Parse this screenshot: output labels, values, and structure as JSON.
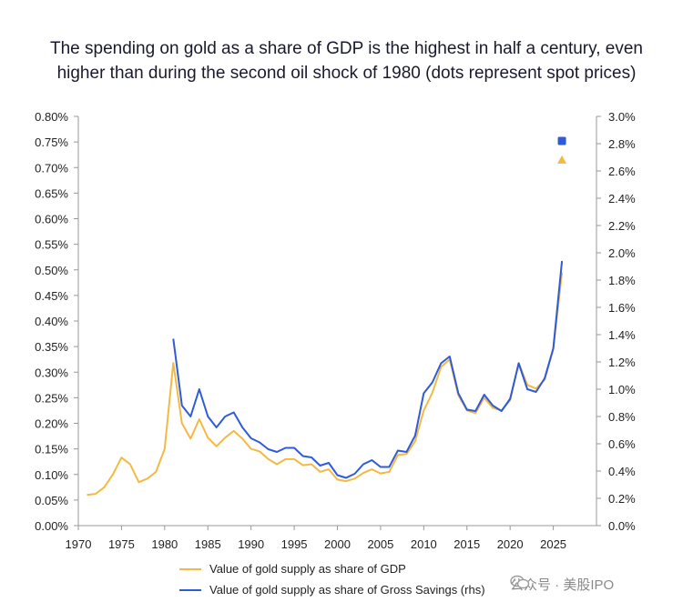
{
  "title_lines": [
    "The spending on gold as a share of GDP is the highest in half a century, even",
    "higher than during the second oil shock of 1980 (dots represent spot prices)"
  ],
  "watermark": "公众号 · 美股IPO",
  "colors": {
    "gdp": "#F4B942",
    "savings": "#2E5BD8",
    "axis": "#999999",
    "text": "#222222"
  },
  "chart_data": {
    "type": "line",
    "title": "The spending on gold as a share of GDP is the highest in half a century, even higher than during the second oil shock of 1980 (dots represent spot prices)",
    "x_ticks": [
      1970,
      1975,
      1980,
      1985,
      1990,
      1995,
      2000,
      2005,
      2010,
      2015,
      2020,
      2025
    ],
    "xlim": [
      1970,
      2030
    ],
    "y_left": {
      "ylim": [
        0,
        0.8
      ],
      "ticks": [
        "0.00%",
        "0.05%",
        "0.10%",
        "0.15%",
        "0.20%",
        "0.25%",
        "0.30%",
        "0.35%",
        "0.40%",
        "0.45%",
        "0.50%",
        "0.55%",
        "0.60%",
        "0.65%",
        "0.70%",
        "0.75%",
        "0.80%"
      ]
    },
    "y_right": {
      "ylim": [
        0,
        3.0
      ],
      "ticks": [
        "0.0%",
        "0.2%",
        "0.4%",
        "0.6%",
        "0.8%",
        "1.0%",
        "1.2%",
        "1.4%",
        "1.6%",
        "1.8%",
        "2.0%",
        "2.2%",
        "2.4%",
        "2.6%",
        "2.8%",
        "3.0%"
      ]
    },
    "series": [
      {
        "name": "Value of gold supply as share of GDP",
        "axis": "left",
        "x": [
          1971,
          1972,
          1973,
          1974,
          1975,
          1976,
          1977,
          1978,
          1979,
          1980,
          1981,
          1982,
          1983,
          1984,
          1985,
          1986,
          1987,
          1988,
          1989,
          1990,
          1991,
          1992,
          1993,
          1994,
          1995,
          1996,
          1997,
          1998,
          1999,
          2000,
          2001,
          2002,
          2003,
          2004,
          2005,
          2006,
          2007,
          2008,
          2009,
          2010,
          2011,
          2012,
          2013,
          2014,
          2015,
          2016,
          2017,
          2018,
          2019,
          2020,
          2021,
          2022,
          2023,
          2024,
          2025,
          2026
        ],
        "values": [
          0.06,
          0.062,
          0.075,
          0.1,
          0.133,
          0.12,
          0.085,
          0.092,
          0.105,
          0.15,
          0.318,
          0.2,
          0.17,
          0.208,
          0.172,
          0.155,
          0.172,
          0.185,
          0.17,
          0.15,
          0.145,
          0.13,
          0.12,
          0.13,
          0.13,
          0.118,
          0.12,
          0.105,
          0.11,
          0.09,
          0.087,
          0.092,
          0.103,
          0.11,
          0.102,
          0.105,
          0.138,
          0.14,
          0.165,
          0.225,
          0.26,
          0.31,
          0.325,
          0.255,
          0.225,
          0.22,
          0.25,
          0.23,
          0.225,
          0.245,
          0.318,
          0.275,
          0.268,
          0.285,
          0.345,
          0.495
        ],
        "spot_marker": {
          "x": 2026,
          "value": 0.715,
          "shape": "triangle"
        }
      },
      {
        "name": "Value of gold supply as share of Gross Savings (rhs)",
        "axis": "right",
        "x": [
          1981,
          1982,
          1983,
          1984,
          1985,
          1986,
          1987,
          1988,
          1989,
          1990,
          1991,
          1992,
          1993,
          1994,
          1995,
          1996,
          1997,
          1998,
          1999,
          2000,
          2001,
          2002,
          2003,
          2004,
          2005,
          2006,
          2007,
          2008,
          2009,
          2010,
          2011,
          2012,
          2013,
          2014,
          2015,
          2016,
          2017,
          2018,
          2019,
          2020,
          2021,
          2022,
          2023,
          2024,
          2025,
          2026
        ],
        "values": [
          1.37,
          0.88,
          0.8,
          1.0,
          0.8,
          0.72,
          0.8,
          0.83,
          0.72,
          0.64,
          0.61,
          0.56,
          0.54,
          0.57,
          0.57,
          0.51,
          0.5,
          0.44,
          0.46,
          0.37,
          0.35,
          0.38,
          0.45,
          0.48,
          0.43,
          0.43,
          0.55,
          0.54,
          0.66,
          0.97,
          1.05,
          1.19,
          1.24,
          0.97,
          0.85,
          0.84,
          0.96,
          0.88,
          0.84,
          0.93,
          1.19,
          1.0,
          0.98,
          1.08,
          1.3,
          1.94
        ],
        "spot_marker": {
          "x": 2026,
          "value": 2.82,
          "shape": "square"
        }
      }
    ],
    "legend": [
      "Value of gold supply as share of GDP",
      "Value of gold supply as share of Gross Savings (rhs)"
    ],
    "legend_position": "bottom-left",
    "grid": false
  }
}
